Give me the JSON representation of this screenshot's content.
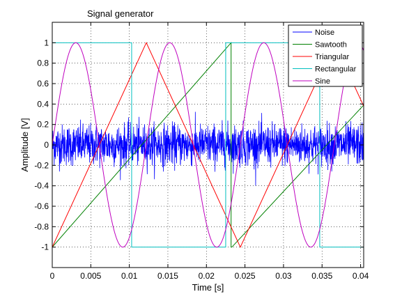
{
  "chart_data": {
    "type": "line",
    "title": "Signal generator",
    "xlabel": "Time [s]",
    "ylabel": "Amplitude [V]",
    "xlim": [
      0,
      0.0404
    ],
    "ylim": [
      -1.2,
      1.2
    ],
    "grid": true,
    "grid_style": "dotted",
    "legend_position": "top-right",
    "x_ticks": [
      {
        "value": 0,
        "label": "0"
      },
      {
        "value": 0.005,
        "label": "0.005"
      },
      {
        "value": 0.01,
        "label": "0.01"
      },
      {
        "value": 0.015,
        "label": "0.015"
      },
      {
        "value": 0.02,
        "label": "0.02"
      },
      {
        "value": 0.025,
        "label": "0.025"
      },
      {
        "value": 0.03,
        "label": "0.03"
      },
      {
        "value": 0.035,
        "label": "0.035"
      },
      {
        "value": 0.04,
        "label": "0.04"
      }
    ],
    "y_ticks": [
      {
        "value": 1,
        "label": "1"
      },
      {
        "value": 0.8,
        "label": "0.8"
      },
      {
        "value": 0.6,
        "label": "0.6"
      },
      {
        "value": 0.4,
        "label": "0.4"
      },
      {
        "value": 0.2,
        "label": "0.2"
      },
      {
        "value": 0,
        "label": "0"
      },
      {
        "value": -0.2,
        "label": "-0.2"
      },
      {
        "value": -0.4,
        "label": "-0.4"
      },
      {
        "value": -0.6,
        "label": "-0.6"
      },
      {
        "value": -0.8,
        "label": "-0.8"
      },
      {
        "value": -1,
        "label": "-1"
      }
    ],
    "series": [
      {
        "name": "Noise",
        "color": "#0000ff",
        "kind": "random noise",
        "amplitude": 0.3,
        "mean": 0
      },
      {
        "name": "Sawtooth",
        "color": "#008000",
        "x": [
          0,
          0.0232,
          0.0232,
          0.0233,
          0.0233,
          0.0404
        ],
        "y": [
          -1,
          1,
          -1,
          -1,
          -1,
          0.39
        ]
      },
      {
        "name": "Triangular",
        "color": "#ff0000",
        "x": [
          0,
          0.0122,
          0.0244,
          0.0366,
          0.0404
        ],
        "y": [
          -1,
          1,
          -1,
          1,
          0.38
        ]
      },
      {
        "name": "Rectangular",
        "color": "#00bfbf",
        "x": [
          0,
          0.0103,
          0.0103,
          0.0225,
          0.0225,
          0.0347,
          0.0347,
          0.0404
        ],
        "y": [
          1,
          1,
          -1,
          -1,
          1,
          1,
          -1,
          -1
        ]
      },
      {
        "name": "Sine",
        "color": "#bf00bf",
        "kind": "sine",
        "amplitude": 1,
        "frequency_hz": 82,
        "phase_rad": 0
      }
    ]
  }
}
